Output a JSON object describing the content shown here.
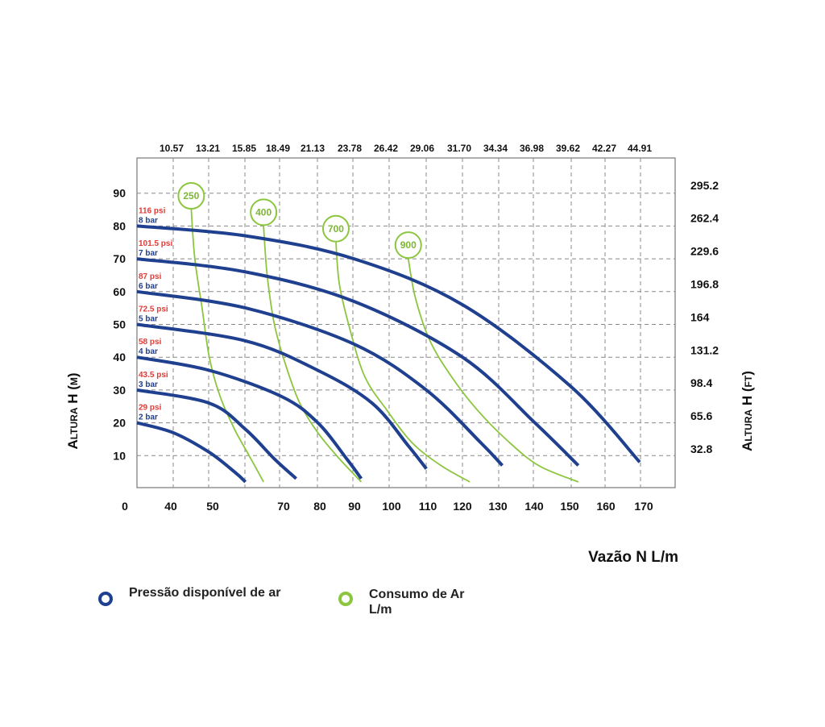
{
  "chart_data": {
    "type": "line",
    "xlabel": "Vazão N L/m",
    "ylabel_left": "Altura H (m)",
    "ylabel_right": "Altura H (ft)",
    "xlim": [
      30,
      175
    ],
    "ylim": [
      0,
      96
    ],
    "grid": true,
    "x_ticks": [
      "0",
      "40",
      "50",
      "70",
      "80",
      "90",
      "100",
      "110",
      "120",
      "130",
      "140",
      "150",
      "160",
      "170"
    ],
    "y_ticks_left": [
      "10",
      "20",
      "30",
      "40",
      "50",
      "60",
      "70",
      "80",
      "90"
    ],
    "y_ticks_right": [
      "32.8",
      "65.6",
      "98.4",
      "131.2",
      "164",
      "196.8",
      "229.6",
      "262.4",
      "295.2"
    ],
    "top_ticks": [
      "10.57",
      "13.21",
      "15.85",
      "18.49",
      "21.13",
      "23.78",
      "26.42",
      "29.06",
      "31.70",
      "34.34",
      "36.98",
      "39.62",
      "42.27",
      "44.91"
    ],
    "pressure_series": [
      {
        "psi": "116 psi",
        "bar": "8 bar",
        "x": [
          30,
          60,
          90,
          120,
          150,
          169
        ],
        "y": [
          80,
          77,
          70,
          56,
          31,
          8
        ]
      },
      {
        "psi": "101.5 psi",
        "bar": "7 bar",
        "x": [
          30,
          60,
          90,
          120,
          140,
          152
        ],
        "y": [
          70,
          66,
          57,
          40,
          20,
          7
        ]
      },
      {
        "psi": "87 psi",
        "bar": "6 bar",
        "x": [
          30,
          60,
          90,
          110,
          125,
          131
        ],
        "y": [
          60,
          55,
          44,
          30,
          14,
          7
        ]
      },
      {
        "psi": "72.5 psi",
        "bar": "5 bar",
        "x": [
          30,
          60,
          80,
          95,
          105,
          110
        ],
        "y": [
          50,
          45,
          36,
          26,
          13,
          6
        ]
      },
      {
        "psi": "58 psi",
        "bar": "4 bar",
        "x": [
          30,
          50,
          70,
          80,
          88,
          92
        ],
        "y": [
          40,
          36,
          28,
          20,
          9,
          3
        ]
      },
      {
        "psi": "43.5 psi",
        "bar": "3 bar",
        "x": [
          30,
          50,
          60,
          68,
          74
        ],
        "y": [
          30,
          26,
          18,
          9,
          3
        ]
      },
      {
        "psi": "29 psi",
        "bar": "2 bar",
        "x": [
          30,
          40,
          50,
          57,
          60
        ],
        "y": [
          20,
          17,
          11,
          5,
          2
        ]
      }
    ],
    "air_series": [
      {
        "label": "250",
        "x": [
          45,
          46,
          48,
          50,
          53,
          57,
          61,
          65
        ],
        "y": [
          85,
          70,
          55,
          40,
          28,
          18,
          10,
          2
        ]
      },
      {
        "label": "400",
        "x": [
          65,
          66,
          68,
          71,
          75,
          80,
          86,
          92
        ],
        "y": [
          80,
          65,
          50,
          38,
          26,
          17,
          9,
          2
        ]
      },
      {
        "label": "700",
        "x": [
          85,
          86,
          89,
          93,
          99,
          106,
          114,
          122
        ],
        "y": [
          75,
          62,
          48,
          34,
          24,
          14,
          7,
          2
        ]
      },
      {
        "label": "900",
        "x": [
          105,
          107,
          111,
          117,
          124,
          132,
          141,
          152
        ],
        "y": [
          70,
          58,
          45,
          34,
          24,
          15,
          7,
          2
        ]
      }
    ]
  },
  "legend": {
    "pressure_label": "Pressão disponível de ar",
    "air_label_line1": "Consumo de Ar",
    "air_label_line2": "L/m"
  },
  "colors": {
    "pressure": "#1f3f8f",
    "air": "#7cb733",
    "psi_text": "#e53935",
    "grid": "#888888"
  }
}
